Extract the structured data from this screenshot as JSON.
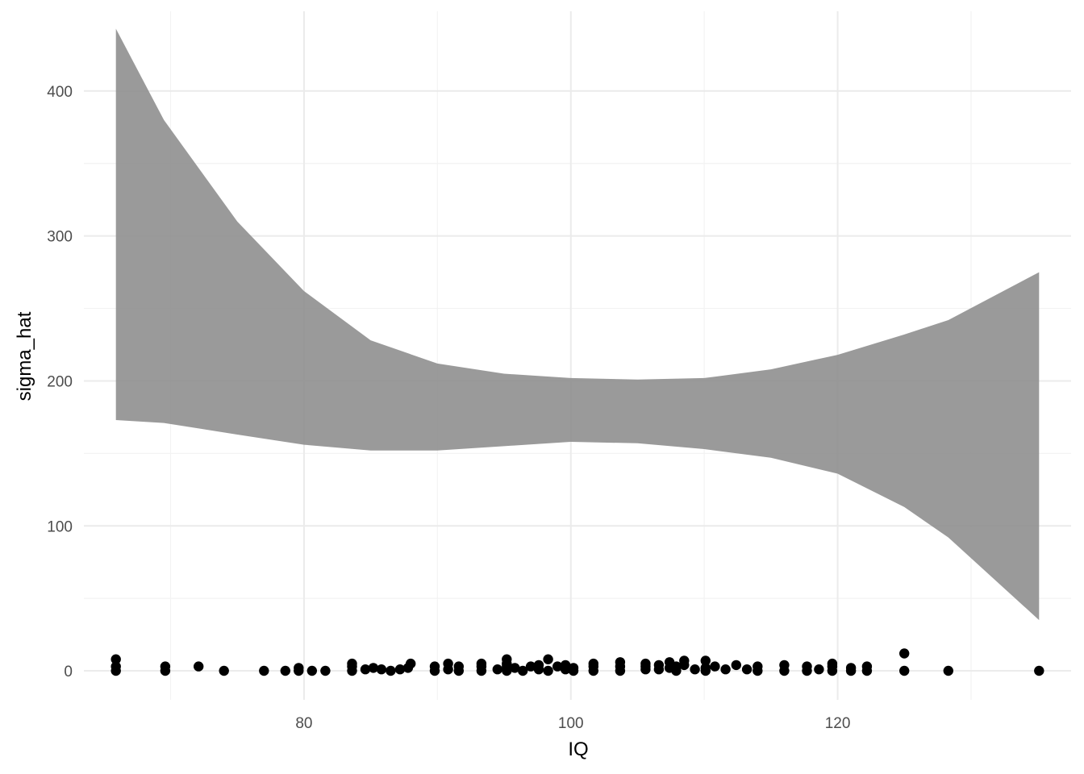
{
  "chart_data": {
    "type": "scatter",
    "title": "",
    "xlabel": "IQ",
    "ylabel": "sigma_hat",
    "xlim": [
      63.5,
      137.5
    ],
    "ylim": [
      -20,
      455
    ],
    "x_ticks": [
      80,
      100,
      120
    ],
    "x_tick_labels": [
      "80",
      "100",
      "120"
    ],
    "x_minor_ticks": [
      70,
      90,
      110,
      130
    ],
    "y_ticks": [
      0,
      100,
      200,
      300,
      400
    ],
    "y_tick_labels": [
      "0",
      "100",
      "200",
      "300",
      "400"
    ],
    "y_minor_ticks": [
      50,
      150,
      250,
      350
    ],
    "grid": true,
    "legend": "none",
    "colors": {
      "ribbon": "#8c8c8c",
      "points": "#000000",
      "grid": "#ebebeb"
    },
    "ribbon": {
      "x": [
        65.9,
        69.5,
        75,
        80,
        85,
        90,
        95,
        100,
        105,
        110,
        115,
        120,
        125,
        128.3,
        135.1
      ],
      "lower": [
        173,
        171,
        163,
        156,
        152,
        152,
        155,
        158,
        157,
        153,
        147,
        136,
        113,
        92,
        35
      ],
      "upper": [
        443,
        380,
        310,
        262,
        228,
        212,
        205,
        202,
        201,
        202,
        208,
        218,
        232,
        242,
        275
      ]
    },
    "points": [
      {
        "x": 65.9,
        "y": 0
      },
      {
        "x": 65.9,
        "y": 3
      },
      {
        "x": 65.9,
        "y": 8
      },
      {
        "x": 69.6,
        "y": 0
      },
      {
        "x": 69.6,
        "y": 3
      },
      {
        "x": 72.1,
        "y": 3
      },
      {
        "x": 74.0,
        "y": 0
      },
      {
        "x": 77.0,
        "y": 0
      },
      {
        "x": 78.6,
        "y": 0
      },
      {
        "x": 79.6,
        "y": 0
      },
      {
        "x": 79.6,
        "y": 2
      },
      {
        "x": 80.6,
        "y": 0
      },
      {
        "x": 81.6,
        "y": 0
      },
      {
        "x": 83.6,
        "y": 0
      },
      {
        "x": 83.6,
        "y": 3
      },
      {
        "x": 83.6,
        "y": 5
      },
      {
        "x": 84.6,
        "y": 1
      },
      {
        "x": 85.2,
        "y": 2
      },
      {
        "x": 85.8,
        "y": 1
      },
      {
        "x": 86.5,
        "y": 0
      },
      {
        "x": 87.2,
        "y": 1
      },
      {
        "x": 87.8,
        "y": 2
      },
      {
        "x": 88.0,
        "y": 5
      },
      {
        "x": 89.8,
        "y": 0
      },
      {
        "x": 89.8,
        "y": 3
      },
      {
        "x": 90.8,
        "y": 1
      },
      {
        "x": 90.8,
        "y": 5
      },
      {
        "x": 91.6,
        "y": 0
      },
      {
        "x": 91.6,
        "y": 3
      },
      {
        "x": 93.3,
        "y": 0
      },
      {
        "x": 93.3,
        "y": 3
      },
      {
        "x": 93.3,
        "y": 5
      },
      {
        "x": 94.5,
        "y": 1
      },
      {
        "x": 95.2,
        "y": 0
      },
      {
        "x": 95.2,
        "y": 3
      },
      {
        "x": 95.2,
        "y": 5
      },
      {
        "x": 95.2,
        "y": 8
      },
      {
        "x": 95.8,
        "y": 2
      },
      {
        "x": 96.4,
        "y": 0
      },
      {
        "x": 97.0,
        "y": 3
      },
      {
        "x": 97.6,
        "y": 1
      },
      {
        "x": 97.6,
        "y": 4
      },
      {
        "x": 98.3,
        "y": 0
      },
      {
        "x": 98.3,
        "y": 8
      },
      {
        "x": 99.0,
        "y": 3
      },
      {
        "x": 99.6,
        "y": 1
      },
      {
        "x": 99.6,
        "y": 4
      },
      {
        "x": 100.2,
        "y": 0
      },
      {
        "x": 100.2,
        "y": 2
      },
      {
        "x": 101.7,
        "y": 0
      },
      {
        "x": 101.7,
        "y": 3
      },
      {
        "x": 101.7,
        "y": 5
      },
      {
        "x": 103.7,
        "y": 0
      },
      {
        "x": 103.7,
        "y": 3
      },
      {
        "x": 103.7,
        "y": 6
      },
      {
        "x": 105.6,
        "y": 1
      },
      {
        "x": 105.6,
        "y": 3
      },
      {
        "x": 105.6,
        "y": 5
      },
      {
        "x": 106.6,
        "y": 1
      },
      {
        "x": 106.6,
        "y": 4
      },
      {
        "x": 107.4,
        "y": 2
      },
      {
        "x": 107.4,
        "y": 6
      },
      {
        "x": 107.9,
        "y": 0
      },
      {
        "x": 107.9,
        "y": 3
      },
      {
        "x": 108.5,
        "y": 4
      },
      {
        "x": 108.5,
        "y": 7
      },
      {
        "x": 109.3,
        "y": 1
      },
      {
        "x": 110.1,
        "y": 0
      },
      {
        "x": 110.1,
        "y": 2
      },
      {
        "x": 110.1,
        "y": 7
      },
      {
        "x": 110.8,
        "y": 3
      },
      {
        "x": 111.6,
        "y": 1
      },
      {
        "x": 112.4,
        "y": 4
      },
      {
        "x": 113.2,
        "y": 1
      },
      {
        "x": 114.0,
        "y": 0
      },
      {
        "x": 114.0,
        "y": 3
      },
      {
        "x": 116.0,
        "y": 0
      },
      {
        "x": 116.0,
        "y": 4
      },
      {
        "x": 117.7,
        "y": 0
      },
      {
        "x": 117.7,
        "y": 3
      },
      {
        "x": 118.6,
        "y": 1
      },
      {
        "x": 119.6,
        "y": 0
      },
      {
        "x": 119.6,
        "y": 3
      },
      {
        "x": 119.6,
        "y": 5
      },
      {
        "x": 121.0,
        "y": 0
      },
      {
        "x": 121.0,
        "y": 2
      },
      {
        "x": 122.2,
        "y": 0
      },
      {
        "x": 122.2,
        "y": 3
      },
      {
        "x": 125.0,
        "y": 0
      },
      {
        "x": 125.0,
        "y": 12
      },
      {
        "x": 128.3,
        "y": 0
      },
      {
        "x": 135.1,
        "y": 0
      }
    ]
  }
}
